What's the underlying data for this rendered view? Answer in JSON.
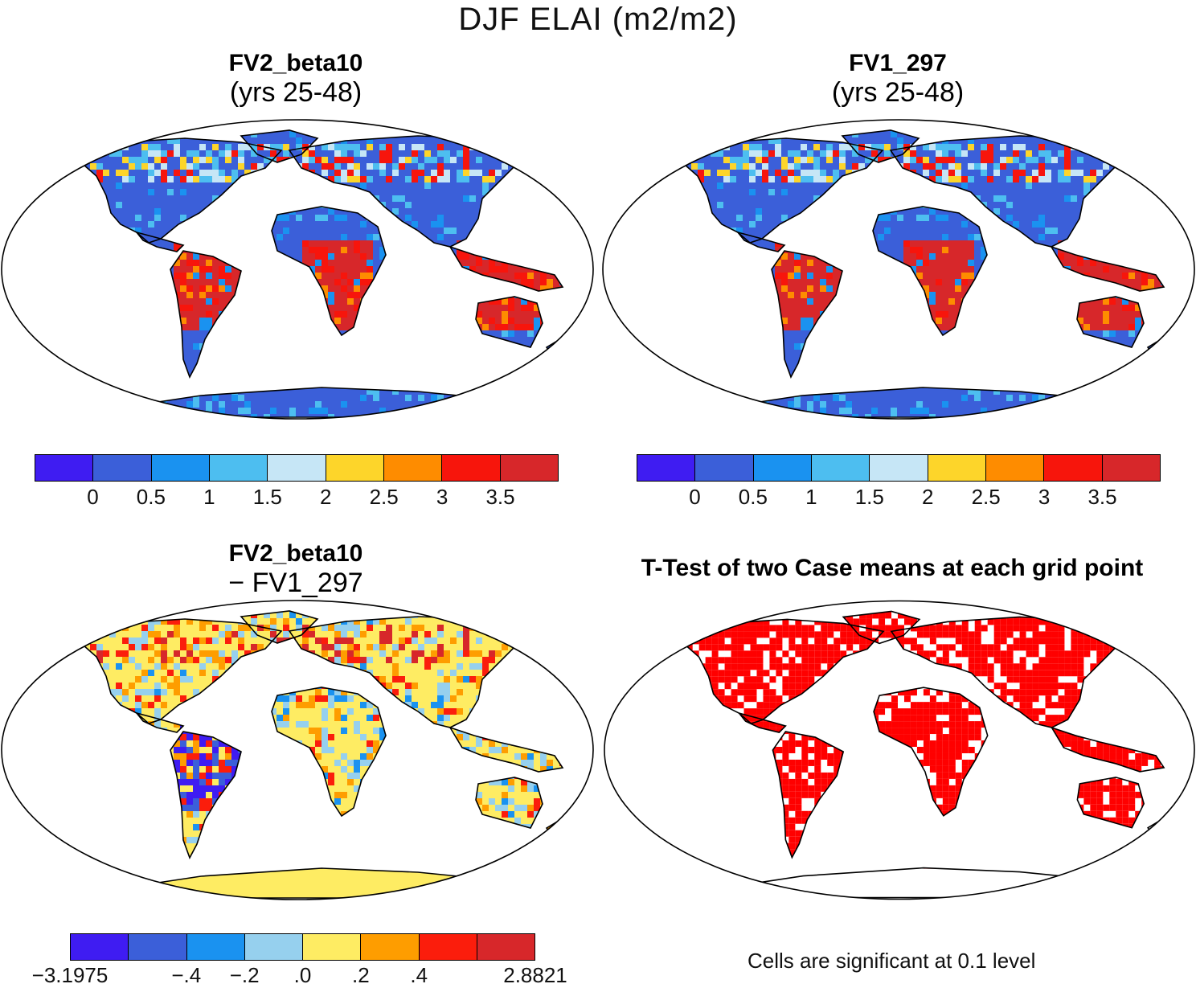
{
  "title": "DJF ELAI (m2/m2)",
  "panels": {
    "tl": {
      "name": "FV2_beta10",
      "sub": "(yrs 25-48)"
    },
    "tr": {
      "name": "FV1_297",
      "sub": "(yrs 25-48)"
    },
    "bl": {
      "name": "FV2_beta10",
      "sub": "− FV1_297"
    },
    "br": {
      "name": "T-Test of two Case means at each grid point"
    }
  },
  "colorbar_abs": {
    "colors": [
      "#3f1cf2",
      "#3b5fd9",
      "#1a92f0",
      "#4dbef0",
      "#c6e6f6",
      "#fdd52a",
      "#fe8c00",
      "#f7150c",
      "#d7272a"
    ],
    "ticks": [
      "0",
      "0.5",
      "1",
      "1.5",
      "2",
      "2.5",
      "3",
      "3.5"
    ]
  },
  "colorbar_diff": {
    "colors": [
      "#3f1cf2",
      "#3b5fd9",
      "#1a92f0",
      "#96d0ee",
      "#feec63",
      "#fe9d00",
      "#fb1d0c",
      "#d7272a"
    ],
    "ticks": [
      "−3.1975",
      "−.4",
      "−.2",
      ".0",
      ".2",
      ".4",
      "2.8821"
    ]
  },
  "note": "Cells are significant at 0.1 level",
  "map_colors": {
    "land_abs": "#3b5fd9",
    "land_diff": "#feec63",
    "sig": "#ff0000"
  }
}
